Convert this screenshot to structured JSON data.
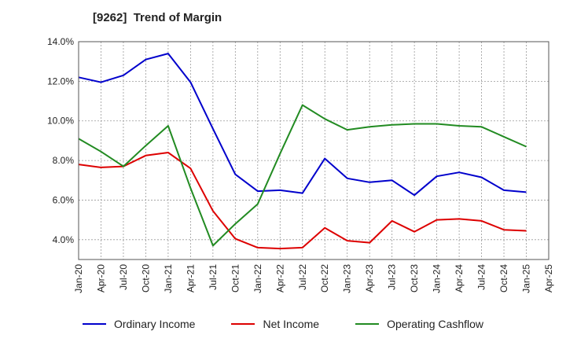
{
  "chart_data": {
    "type": "line",
    "title": "[9262]  Trend of Margin",
    "x_tick_labels": [
      "Jan-20",
      "Apr-20",
      "Jul-20",
      "Oct-20",
      "Jan-21",
      "Apr-21",
      "Jul-21",
      "Oct-21",
      "Jan-22",
      "Apr-22",
      "Jul-22",
      "Oct-22",
      "Jan-23",
      "Apr-23",
      "Jul-23",
      "Oct-23",
      "Jan-24",
      "Apr-24",
      "Jul-24",
      "Oct-24",
      "Jan-25",
      "Apr-25"
    ],
    "y_tick_labels": [
      "4.0%",
      "6.0%",
      "8.0%",
      "10.0%",
      "12.0%",
      "14.0%"
    ],
    "y_ticks": [
      4,
      6,
      8,
      10,
      12,
      14
    ],
    "ylim": [
      3.0,
      14.0
    ],
    "grid": true,
    "legend_position": "bottom",
    "series": [
      {
        "name": "Ordinary Income",
        "color": "#0000cc",
        "values": [
          12.2,
          11.95,
          12.3,
          13.1,
          13.4,
          11.95,
          9.6,
          7.3,
          6.45,
          6.5,
          6.35,
          8.1,
          7.1,
          6.9,
          7.0,
          6.25,
          7.2,
          7.4,
          7.15,
          6.5,
          6.4
        ]
      },
      {
        "name": "Net Income",
        "color": "#dd0000",
        "values": [
          7.8,
          7.65,
          7.7,
          8.25,
          8.4,
          7.6,
          5.45,
          4.05,
          3.6,
          3.55,
          3.6,
          4.6,
          3.95,
          3.85,
          4.95,
          4.4,
          5.0,
          5.05,
          4.95,
          4.5,
          4.45
        ]
      },
      {
        "name": "Operating Cashflow",
        "color": "#228b22",
        "values": [
          9.1,
          8.45,
          7.7,
          8.75,
          9.75,
          6.6,
          3.7,
          4.8,
          5.8,
          8.35,
          10.8,
          10.1,
          9.55,
          9.7,
          9.8,
          9.85,
          9.85,
          9.75,
          9.7,
          9.2,
          8.7
        ]
      }
    ]
  }
}
